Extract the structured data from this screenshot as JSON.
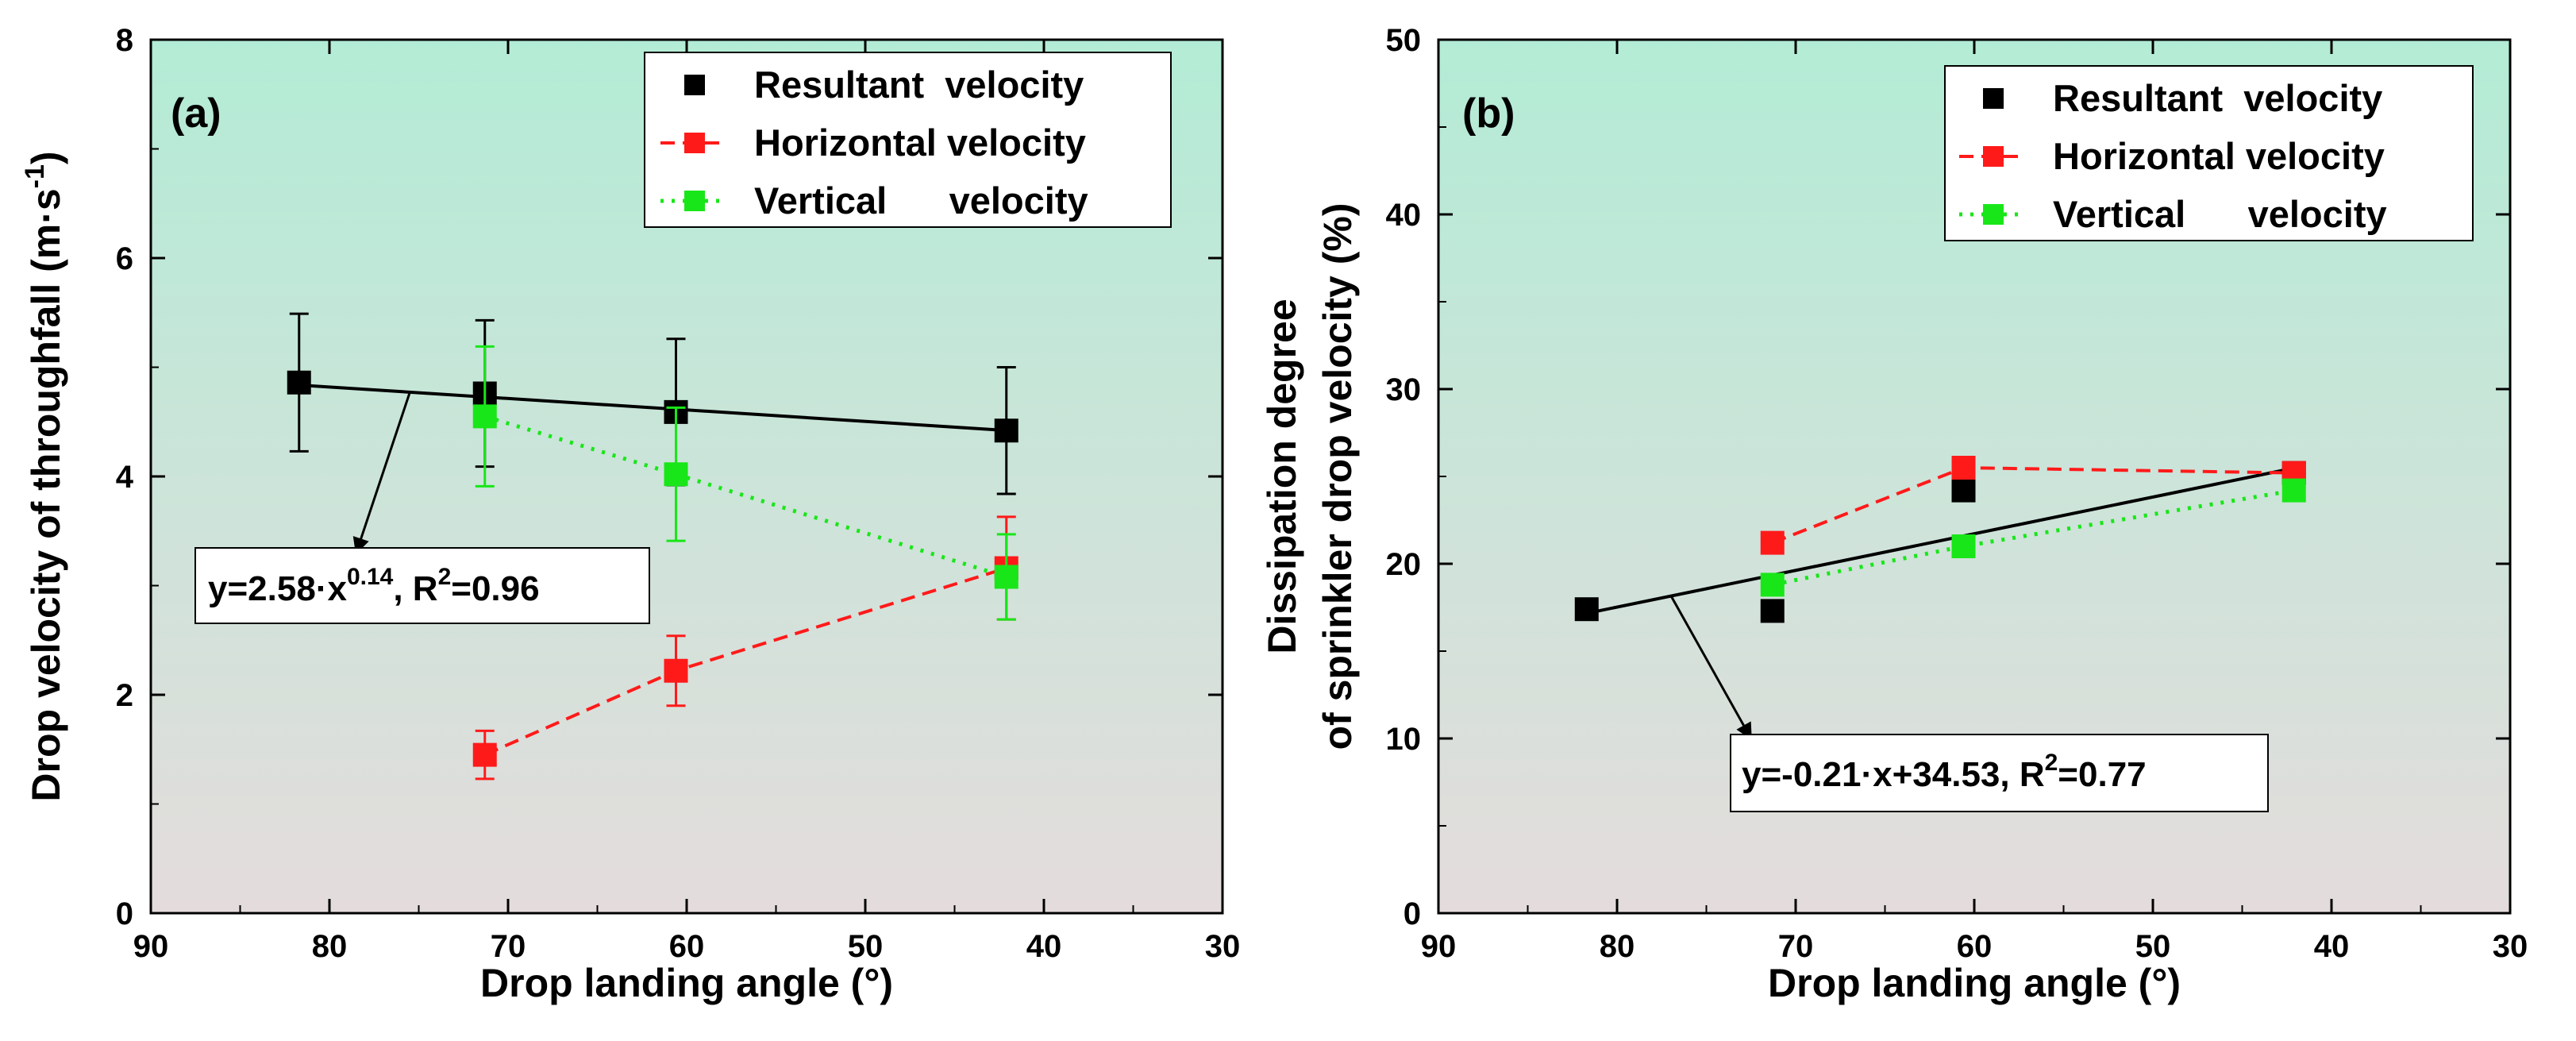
{
  "chart_data": [
    {
      "type": "line",
      "panel_label": "(a)",
      "xlabel": "Drop landing angle (°)",
      "ylabel": "Drop velocity of throughfall (m·s-1)",
      "ylabel_main": "Drop velocity of throughfall (m·s",
      "ylabel_sup": "-1",
      "ylabel_end": ")",
      "xlim": [
        90,
        30
      ],
      "ylim": [
        0,
        8
      ],
      "xticks": [
        90,
        80,
        70,
        60,
        50,
        40,
        30
      ],
      "yticks": [
        0,
        2,
        4,
        6,
        8
      ],
      "legend": [
        "Resultant  velocity",
        "Horizontal velocity",
        "Vertical      velocity"
      ],
      "legend_position": "top-right",
      "series": [
        {
          "name": "Resultant velocity",
          "color": "#000000",
          "style": "markers",
          "x": [
            81.7,
            71.3,
            60.6,
            42.1
          ],
          "y": [
            4.86,
            4.76,
            4.59,
            4.42
          ],
          "err": [
            0.63,
            0.67,
            0.67,
            0.58
          ]
        },
        {
          "name": "Horizontal velocity",
          "color": "#ff1a1a",
          "style": "dashed",
          "x": [
            71.3,
            60.6,
            42.1
          ],
          "y": [
            1.45,
            2.22,
            3.16
          ],
          "err": [
            0.22,
            0.32,
            0.47
          ]
        },
        {
          "name": "Vertical velocity",
          "color": "#19e619",
          "style": "dotted",
          "x": [
            71.3,
            60.6,
            42.1
          ],
          "y": [
            4.55,
            4.02,
            3.08
          ],
          "err": [
            0.64,
            0.61,
            0.39
          ]
        }
      ],
      "fit": {
        "x": [
          82,
          42
        ],
        "y": [
          4.84,
          4.42
        ],
        "color": "#000000"
      },
      "annotation": {
        "text_a": "y=2.58·x",
        "text_sup": "0.14",
        "text_b": ", R",
        "text_sup2": "2",
        "text_c": "=0.96",
        "arrow_from": [
          75.5,
          4.77
        ],
        "arrow_to": [
          78.5,
          3.3
        ]
      }
    },
    {
      "type": "line",
      "panel_label": "(b)",
      "xlabel": "Drop landing angle (°)",
      "ylabel_line1": "Dissipation degree",
      "ylabel_line2": "of sprinkler drop velocity (%)",
      "xlim": [
        90,
        30
      ],
      "ylim": [
        0,
        50
      ],
      "xticks": [
        90,
        80,
        70,
        60,
        50,
        40,
        30
      ],
      "yticks": [
        0,
        10,
        20,
        30,
        40,
        50
      ],
      "legend": [
        "Resultant  velocity",
        "Horizontal velocity",
        "Vertical      velocity"
      ],
      "legend_position": "top-right",
      "series": [
        {
          "name": "Resultant velocity",
          "color": "#000000",
          "style": "markers",
          "x": [
            81.7,
            71.3,
            60.6,
            42.1
          ],
          "y": [
            17.4,
            17.3,
            24.2,
            25.2
          ]
        },
        {
          "name": "Horizontal velocity",
          "color": "#ff1a1a",
          "style": "dashed",
          "x": [
            71.3,
            60.6,
            42.1
          ],
          "y": [
            21.2,
            25.5,
            25.2
          ]
        },
        {
          "name": "Vertical velocity",
          "color": "#19e619",
          "style": "dotted",
          "x": [
            71.3,
            60.6,
            42.1
          ],
          "y": [
            18.8,
            21.0,
            24.2
          ]
        }
      ],
      "fit": {
        "x": [
          82,
          42
        ],
        "y": [
          17.1,
          25.5
        ],
        "color": "#000000"
      },
      "annotation": {
        "text_a": "y=-0.21·x+34.53, R",
        "text_sup": "2",
        "text_b": "=0.77",
        "arrow_from": [
          77.0,
          18.2
        ],
        "arrow_to": [
          72.5,
          10.0
        ]
      }
    }
  ]
}
